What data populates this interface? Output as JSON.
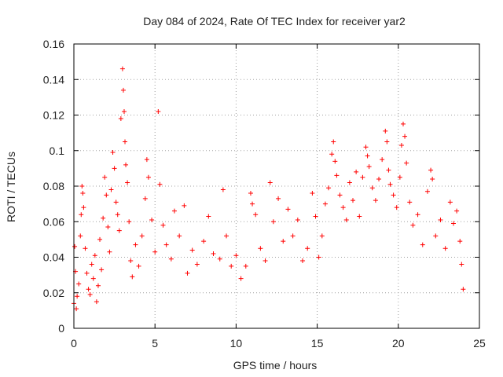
{
  "chart_data": {
    "type": "scatter",
    "title": "Day 084 of 2024, Rate Of TEC Index for receiver yar2",
    "xlabel": "GPS time / hours",
    "ylabel": "ROTI / TECUs",
    "xlim": [
      0,
      25
    ],
    "ylim": [
      0,
      0.16
    ],
    "xticks": [
      0,
      5,
      10,
      15,
      20,
      25
    ],
    "yticks": [
      0,
      0.02,
      0.04,
      0.06,
      0.08,
      0.1,
      0.12,
      0.14,
      0.16
    ],
    "xtick_labels": [
      "0",
      "5",
      "10",
      "15",
      "20",
      "25"
    ],
    "ytick_labels": [
      "0",
      "0.02",
      "0.04",
      "0.06",
      "0.08",
      "0.1",
      "0.12",
      "0.14",
      "0.16"
    ],
    "grid": true,
    "marker": "plus",
    "color": "#ff0000",
    "series": [
      {
        "name": "ROTI",
        "points": [
          [
            0.0,
            0.014
          ],
          [
            0.05,
            0.046
          ],
          [
            0.1,
            0.032
          ],
          [
            0.15,
            0.011
          ],
          [
            0.2,
            0.018
          ],
          [
            0.3,
            0.025
          ],
          [
            0.4,
            0.052
          ],
          [
            0.45,
            0.064
          ],
          [
            0.5,
            0.08
          ],
          [
            0.55,
            0.076
          ],
          [
            0.6,
            0.068
          ],
          [
            0.7,
            0.045
          ],
          [
            0.8,
            0.031
          ],
          [
            0.9,
            0.022
          ],
          [
            1.0,
            0.019
          ],
          [
            1.1,
            0.036
          ],
          [
            1.2,
            0.028
          ],
          [
            1.3,
            0.041
          ],
          [
            1.4,
            0.015
          ],
          [
            1.5,
            0.024
          ],
          [
            1.6,
            0.05
          ],
          [
            1.7,
            0.033
          ],
          [
            1.8,
            0.062
          ],
          [
            1.9,
            0.085
          ],
          [
            2.0,
            0.075
          ],
          [
            2.1,
            0.057
          ],
          [
            2.2,
            0.043
          ],
          [
            2.3,
            0.078
          ],
          [
            2.4,
            0.099
          ],
          [
            2.5,
            0.09
          ],
          [
            2.6,
            0.071
          ],
          [
            2.7,
            0.064
          ],
          [
            2.8,
            0.055
          ],
          [
            2.9,
            0.118
          ],
          [
            3.0,
            0.146
          ],
          [
            3.05,
            0.134
          ],
          [
            3.1,
            0.122
          ],
          [
            3.15,
            0.105
          ],
          [
            3.2,
            0.092
          ],
          [
            3.3,
            0.082
          ],
          [
            3.4,
            0.06
          ],
          [
            3.5,
            0.038
          ],
          [
            3.6,
            0.029
          ],
          [
            3.8,
            0.047
          ],
          [
            4.0,
            0.035
          ],
          [
            4.2,
            0.052
          ],
          [
            4.4,
            0.073
          ],
          [
            4.5,
            0.095
          ],
          [
            4.6,
            0.085
          ],
          [
            4.8,
            0.061
          ],
          [
            5.0,
            0.043
          ],
          [
            5.2,
            0.122
          ],
          [
            5.3,
            0.081
          ],
          [
            5.5,
            0.058
          ],
          [
            5.7,
            0.047
          ],
          [
            6.0,
            0.039
          ],
          [
            6.2,
            0.066
          ],
          [
            6.5,
            0.052
          ],
          [
            6.8,
            0.069
          ],
          [
            7.0,
            0.031
          ],
          [
            7.3,
            0.044
          ],
          [
            7.6,
            0.036
          ],
          [
            8.0,
            0.049
          ],
          [
            8.3,
            0.063
          ],
          [
            8.6,
            0.042
          ],
          [
            9.0,
            0.039
          ],
          [
            9.2,
            0.078
          ],
          [
            9.4,
            0.052
          ],
          [
            9.7,
            0.035
          ],
          [
            10.0,
            0.041
          ],
          [
            10.3,
            0.028
          ],
          [
            10.6,
            0.035
          ],
          [
            10.9,
            0.076
          ],
          [
            11.0,
            0.07
          ],
          [
            11.2,
            0.064
          ],
          [
            11.5,
            0.045
          ],
          [
            11.8,
            0.038
          ],
          [
            12.1,
            0.082
          ],
          [
            12.3,
            0.06
          ],
          [
            12.6,
            0.073
          ],
          [
            12.9,
            0.049
          ],
          [
            13.2,
            0.067
          ],
          [
            13.5,
            0.052
          ],
          [
            13.8,
            0.061
          ],
          [
            14.1,
            0.038
          ],
          [
            14.4,
            0.045
          ],
          [
            14.7,
            0.076
          ],
          [
            14.9,
            0.063
          ],
          [
            15.1,
            0.04
          ],
          [
            15.3,
            0.052
          ],
          [
            15.5,
            0.07
          ],
          [
            15.7,
            0.079
          ],
          [
            15.9,
            0.098
          ],
          [
            16.0,
            0.105
          ],
          [
            16.1,
            0.094
          ],
          [
            16.2,
            0.086
          ],
          [
            16.4,
            0.075
          ],
          [
            16.6,
            0.068
          ],
          [
            16.8,
            0.061
          ],
          [
            17.0,
            0.082
          ],
          [
            17.2,
            0.072
          ],
          [
            17.4,
            0.088
          ],
          [
            17.6,
            0.063
          ],
          [
            17.8,
            0.085
          ],
          [
            18.0,
            0.102
          ],
          [
            18.1,
            0.097
          ],
          [
            18.2,
            0.091
          ],
          [
            18.4,
            0.079
          ],
          [
            18.6,
            0.072
          ],
          [
            18.8,
            0.084
          ],
          [
            19.0,
            0.095
          ],
          [
            19.2,
            0.111
          ],
          [
            19.3,
            0.105
          ],
          [
            19.4,
            0.089
          ],
          [
            19.5,
            0.081
          ],
          [
            19.7,
            0.075
          ],
          [
            19.9,
            0.068
          ],
          [
            20.1,
            0.085
          ],
          [
            20.2,
            0.103
          ],
          [
            20.3,
            0.115
          ],
          [
            20.4,
            0.108
          ],
          [
            20.5,
            0.093
          ],
          [
            20.7,
            0.071
          ],
          [
            20.9,
            0.058
          ],
          [
            21.2,
            0.064
          ],
          [
            21.5,
            0.047
          ],
          [
            21.8,
            0.077
          ],
          [
            22.0,
            0.089
          ],
          [
            22.1,
            0.084
          ],
          [
            22.3,
            0.052
          ],
          [
            22.6,
            0.061
          ],
          [
            22.9,
            0.045
          ],
          [
            23.2,
            0.071
          ],
          [
            23.4,
            0.059
          ],
          [
            23.6,
            0.066
          ],
          [
            23.8,
            0.049
          ],
          [
            23.9,
            0.036
          ],
          [
            24.0,
            0.022
          ]
        ]
      }
    ]
  }
}
